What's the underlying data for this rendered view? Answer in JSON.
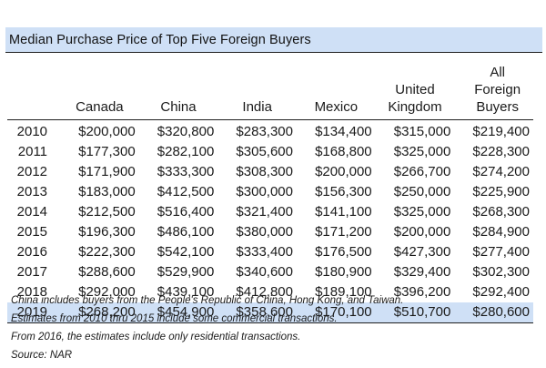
{
  "title": "Median Purchase Price of Top Five Foreign Buyers",
  "colors": {
    "header_fill": "#cfe0f6",
    "highlight_fill": "#cfe0f6",
    "rule": "#1f1f1f"
  },
  "columns": [
    {
      "label": "Canada"
    },
    {
      "label": "China"
    },
    {
      "label": "India"
    },
    {
      "label": "Mexico"
    },
    {
      "label": "United Kingdom"
    },
    {
      "label": "All Foreign Buyers"
    }
  ],
  "rows": [
    {
      "year": "2010",
      "cells": [
        "$200,000",
        "$320,800",
        "$283,300",
        "$134,400",
        "$315,000",
        "$219,400"
      ]
    },
    {
      "year": "2011",
      "cells": [
        "$177,300",
        "$282,100",
        "$305,600",
        "$168,800",
        "$325,000",
        "$228,300"
      ]
    },
    {
      "year": "2012",
      "cells": [
        "$171,900",
        "$333,300",
        "$308,300",
        "$200,000",
        "$266,700",
        "$274,200"
      ]
    },
    {
      "year": "2013",
      "cells": [
        "$183,000",
        "$412,500",
        "$300,000",
        "$156,300",
        "$250,000",
        "$225,900"
      ]
    },
    {
      "year": "2014",
      "cells": [
        "$212,500",
        "$516,400",
        "$321,400",
        "$141,100",
        "$325,000",
        "$268,300"
      ]
    },
    {
      "year": "2015",
      "cells": [
        "$196,300",
        "$486,100",
        "$380,000",
        "$171,200",
        "$200,000",
        "$284,900"
      ]
    },
    {
      "year": "2016",
      "cells": [
        "$222,300",
        "$542,100",
        "$333,400",
        "$176,500",
        "$427,300",
        "$277,400"
      ]
    },
    {
      "year": "2017",
      "cells": [
        "$288,600",
        "$529,900",
        "$340,600",
        "$180,900",
        "$329,400",
        "$302,300"
      ]
    },
    {
      "year": "2018",
      "cells": [
        "$292,000",
        "$439,100",
        "$412,800",
        "$189,100",
        "$396,200",
        "$292,400"
      ]
    },
    {
      "year": "2019",
      "cells": [
        "$268,200",
        "$454,900",
        "$358,600",
        "$170,100",
        "$510,700",
        "$280,600"
      ],
      "highlighted": true
    }
  ],
  "notes": [
    "China includes buyers from the People's Republic of China, Hong Kong, and Taiwan.",
    "Estimates from 2010 thru 2015 include some commercial transactions.",
    "From 2016, the estimates include only residential transactions.",
    "Source: NAR"
  ],
  "chart_data": {
    "type": "table",
    "title": "Median Purchase Price of Top Five Foreign Buyers",
    "categories": [
      "2010",
      "2011",
      "2012",
      "2013",
      "2014",
      "2015",
      "2016",
      "2017",
      "2018",
      "2019"
    ],
    "series": [
      {
        "name": "Canada",
        "values": [
          200000,
          177300,
          171900,
          183000,
          212500,
          196300,
          222300,
          288600,
          292000,
          268200
        ]
      },
      {
        "name": "China",
        "values": [
          320800,
          282100,
          333300,
          412500,
          516400,
          486100,
          542100,
          529900,
          439100,
          454900
        ]
      },
      {
        "name": "India",
        "values": [
          283300,
          305600,
          308300,
          300000,
          321400,
          380000,
          333400,
          340600,
          412800,
          358600
        ]
      },
      {
        "name": "Mexico",
        "values": [
          134400,
          168800,
          200000,
          156300,
          141100,
          171200,
          176500,
          180900,
          189100,
          170100
        ]
      },
      {
        "name": "United Kingdom",
        "values": [
          315000,
          325000,
          266700,
          250000,
          325000,
          200000,
          427300,
          329400,
          396200,
          510700
        ]
      },
      {
        "name": "All Foreign Buyers",
        "values": [
          219400,
          228300,
          274200,
          225900,
          268300,
          284900,
          277400,
          302300,
          292400,
          280600
        ]
      }
    ]
  }
}
